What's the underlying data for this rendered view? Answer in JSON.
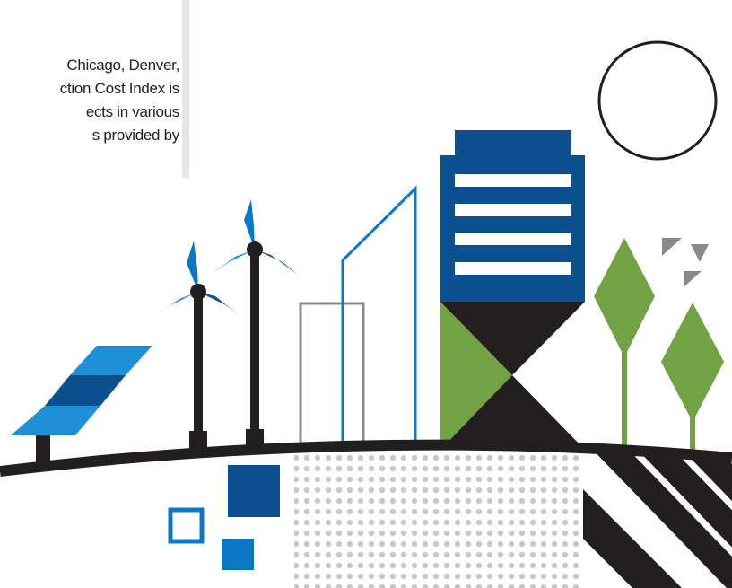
{
  "text": {
    "lines": [
      "Chicago, Denver,",
      "ction Cost Index is",
      "ects in various",
      "s provided by"
    ]
  },
  "colors": {
    "dark_blue": "#0c5090",
    "mid_blue": "#0a78c2",
    "light_blue": "#1f8fd8",
    "green": "#72a244",
    "black": "#231f20",
    "gray": "#8a8a8a",
    "dots": "#c8c8c8",
    "divider": "#e6e6e6"
  },
  "illustration": {
    "icons": [
      "sun-icon",
      "solar-panel-icon",
      "wind-turbine-icon",
      "building-icon",
      "tree-icon",
      "bird-icon",
      "hill-icon"
    ]
  }
}
